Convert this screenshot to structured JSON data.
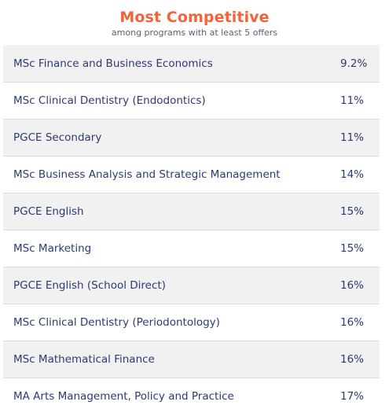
{
  "header": {
    "title": "Most Competitive",
    "subtitle": "among programs with at least 5 offers"
  },
  "rows": [
    {
      "program": "MSc Finance and Business Economics",
      "value": "9.2%"
    },
    {
      "program": "MSc Clinical Dentistry (Endodontics)",
      "value": "11%"
    },
    {
      "program": "PGCE Secondary",
      "value": "11%"
    },
    {
      "program": "MSc Business Analysis and Strategic Management",
      "value": "14%"
    },
    {
      "program": "PGCE English",
      "value": "15%"
    },
    {
      "program": "MSc Marketing",
      "value": "15%"
    },
    {
      "program": "PGCE English (School Direct)",
      "value": "16%"
    },
    {
      "program": "MSc Clinical Dentistry (Periodontology)",
      "value": "16%"
    },
    {
      "program": "MSc Mathematical Finance",
      "value": "16%"
    },
    {
      "program": "MA Arts Management, Policy and Practice",
      "value": "17%"
    }
  ],
  "colors": {
    "title": "#f4623a",
    "text": "#2c3a74",
    "row_shade": "#f1f1f1"
  }
}
